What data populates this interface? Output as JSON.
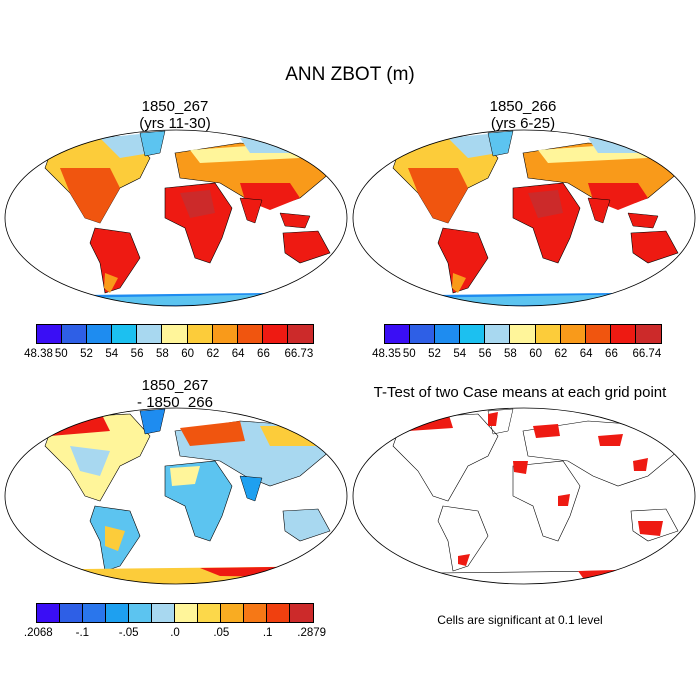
{
  "title": "ANN ZBOT (m)",
  "panels": {
    "p1": {
      "title_line1": "1850_267",
      "title_line2": "(yrs 11-30)"
    },
    "p2": {
      "title_line1": "1850_266",
      "title_line2": "(yrs 6-25)"
    },
    "p3": {
      "title_line1": "1850_267",
      "title_line2": "- 1850_266"
    },
    "p4": {
      "title_line1": "T-Test of two Case means at each grid point"
    }
  },
  "colorbars": {
    "cb1": {
      "colors": [
        "#3a0ef5",
        "#2e5fe6",
        "#1e8cf0",
        "#1cc0f0",
        "#a8d8f0",
        "#fff59a",
        "#fccc3a",
        "#f99a1a",
        "#f0550f",
        "#ee1a12",
        "#cc2a2a"
      ],
      "labels": [
        "48.38",
        "50",
        "52",
        "54",
        "56",
        "58",
        "60",
        "62",
        "64",
        "66",
        "66.73"
      ]
    },
    "cb2": {
      "colors": [
        "#3a0ef5",
        "#2e5fe6",
        "#1e8cf0",
        "#1cc0f0",
        "#a8d8f0",
        "#fff59a",
        "#fccc3a",
        "#f99a1a",
        "#f0550f",
        "#ee1a12",
        "#cc2a2a"
      ],
      "labels": [
        "48.35",
        "50",
        "52",
        "54",
        "56",
        "58",
        "60",
        "62",
        "64",
        "66",
        "66.74"
      ]
    },
    "cb3": {
      "colors": [
        "#3a0ef5",
        "#2e5fe6",
        "#2a76ec",
        "#1ea0f0",
        "#5cc4f0",
        "#a8d8f0",
        "#fff59a",
        "#fcd84a",
        "#f9ac22",
        "#f67816",
        "#f0400f",
        "#cc2a2a"
      ],
      "labels": [
        ".2068",
        "-.1",
        "-.05",
        ".0",
        ".05",
        ".1",
        ".2879"
      ]
    }
  },
  "significance_note": "Cells are significant at 0.1 level"
}
